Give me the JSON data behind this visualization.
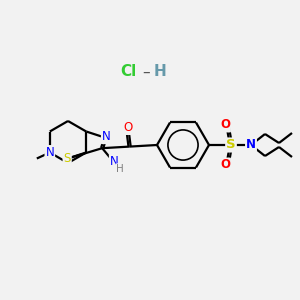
{
  "bg_color": "#f2f2f2",
  "atom_colors": {
    "C": "#000000",
    "N": "#0000ff",
    "O": "#ff0000",
    "S": "#cccc00",
    "H": "#808080",
    "Cl": "#33cc33"
  },
  "bond_color": "#000000",
  "hcl_cl_color": "#33cc33",
  "hcl_h_color": "#6699aa",
  "hcl_dash_color": "#555555",
  "figsize": [
    3.0,
    3.0
  ],
  "dpi": 100
}
